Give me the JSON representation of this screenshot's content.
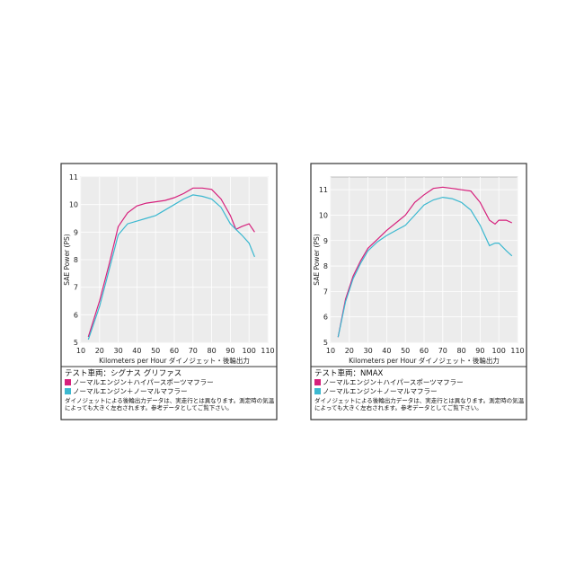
{
  "chart_data": [
    {
      "type": "line",
      "y_label": "SAE Power (PS)",
      "x_label": "Kilometers per Hour ダイノジェット・後輪出力",
      "vehicle": "テスト車両：シグナス グリファス",
      "note": "ダイノジェットによる後輪出力データは、実走行とは異なります。測定時の気温によっても大きく左右されます。参考データとしてご覧下さい。",
      "xlim": [
        10,
        110
      ],
      "xticks": [
        10,
        20,
        30,
        40,
        50,
        60,
        70,
        80,
        90,
        100,
        110
      ],
      "ylim": [
        5,
        11
      ],
      "yticks": [
        5,
        6,
        7,
        8,
        9,
        10,
        11
      ],
      "grid": true,
      "x": [
        14,
        20,
        25,
        30,
        35,
        40,
        45,
        50,
        55,
        60,
        65,
        70,
        75,
        80,
        85,
        90,
        93,
        96,
        100,
        103
      ],
      "series": [
        {
          "name": "ノーマルエンジン＋ハイパースポーツマフラー",
          "color": "#d6207c",
          "values": [
            5.2,
            6.5,
            7.8,
            9.2,
            9.7,
            9.95,
            10.05,
            10.1,
            10.15,
            10.25,
            10.4,
            10.6,
            10.6,
            10.55,
            10.2,
            9.6,
            9.1,
            9.2,
            9.3,
            9.0
          ]
        },
        {
          "name": "ノーマルエンジン＋ノーマルマフラー",
          "color": "#3bb8d0",
          "values": [
            5.1,
            6.3,
            7.6,
            8.9,
            9.3,
            9.4,
            9.5,
            9.6,
            9.8,
            10.0,
            10.2,
            10.35,
            10.3,
            10.2,
            9.9,
            9.3,
            9.1,
            8.9,
            8.6,
            8.1
          ]
        }
      ]
    },
    {
      "type": "line",
      "y_label": "SAE Power (PS)",
      "x_label": "Kilometers per Hour ダイノジェット・後輪出力",
      "vehicle": "テスト車両：NMAX",
      "note": "ダイノジェットによる後輪出力データは、実走行とは異なります。測定時の気温によっても大きく左右されます。参考データとしてご覧下さい。",
      "xlim": [
        10,
        110
      ],
      "xticks": [
        10,
        20,
        30,
        40,
        50,
        60,
        70,
        80,
        90,
        100,
        110
      ],
      "ylim": [
        5,
        11.5
      ],
      "yticks": [
        5,
        6,
        7,
        8,
        9,
        10,
        11
      ],
      "grid": true,
      "x": [
        14,
        18,
        22,
        26,
        30,
        35,
        40,
        45,
        50,
        55,
        60,
        65,
        70,
        75,
        80,
        85,
        90,
        95,
        98,
        100,
        104,
        107
      ],
      "series": [
        {
          "name": "ノーマルエンジン＋ハイパースポーツマフラー",
          "color": "#d6207c",
          "values": [
            5.2,
            6.7,
            7.6,
            8.2,
            8.7,
            9.05,
            9.4,
            9.7,
            10.0,
            10.5,
            10.8,
            11.05,
            11.1,
            11.05,
            11.0,
            10.95,
            10.5,
            9.8,
            9.65,
            9.8,
            9.8,
            9.7
          ]
        },
        {
          "name": "ノーマルエンジン＋ノーマルマフラー",
          "color": "#3bb8d0",
          "values": [
            5.2,
            6.6,
            7.5,
            8.1,
            8.6,
            8.95,
            9.2,
            9.4,
            9.6,
            10.0,
            10.4,
            10.6,
            10.7,
            10.65,
            10.5,
            10.2,
            9.6,
            8.8,
            8.9,
            8.9,
            8.6,
            8.4
          ]
        }
      ]
    }
  ]
}
